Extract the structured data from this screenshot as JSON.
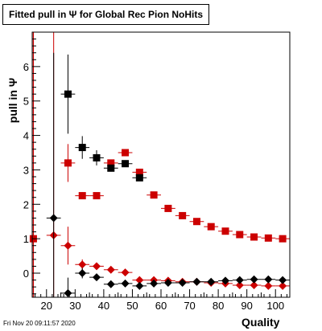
{
  "chart_data": {
    "type": "scatter",
    "title": "Fitted pull in Ψ  for Global Rec Pion NoHits",
    "xlabel": "Quality",
    "ylabel": "pull in Ψ",
    "xlim": [
      15,
      105
    ],
    "ylim": [
      -0.7,
      7.0
    ],
    "x_ticks": [
      20,
      30,
      40,
      50,
      60,
      70,
      80,
      90,
      100
    ],
    "y_ticks": [
      0,
      1,
      2,
      3,
      4,
      5,
      6
    ],
    "vertical_line": {
      "x": 15.4,
      "color": "#cc0000"
    },
    "grid": false,
    "legend": "none",
    "series": [
      {
        "marker": "square",
        "color": "#cc0000",
        "points": [
          {
            "x": 15.4,
            "y": 1.0,
            "yerr": 0.0
          },
          {
            "x": 27.5,
            "y": 3.2,
            "yerr": 0.55
          },
          {
            "x": 32.5,
            "y": 2.25,
            "yerr": 0.1
          },
          {
            "x": 37.5,
            "y": 2.25,
            "yerr": 0.05
          },
          {
            "x": 42.5,
            "y": 3.2,
            "yerr": 0.05
          },
          {
            "x": 47.5,
            "y": 3.5,
            "yerr": 0.05
          },
          {
            "x": 52.5,
            "y": 2.93,
            "yerr": 0.05
          },
          {
            "x": 57.5,
            "y": 2.27,
            "yerr": 0.05
          },
          {
            "x": 62.5,
            "y": 1.88,
            "yerr": 0.04
          },
          {
            "x": 67.5,
            "y": 1.67,
            "yerr": 0.03
          },
          {
            "x": 72.5,
            "y": 1.5,
            "yerr": 0.03
          },
          {
            "x": 77.5,
            "y": 1.35,
            "yerr": 0.03
          },
          {
            "x": 82.5,
            "y": 1.22,
            "yerr": 0.03
          },
          {
            "x": 87.5,
            "y": 1.12,
            "yerr": 0.03
          },
          {
            "x": 92.5,
            "y": 1.05,
            "yerr": 0.03
          },
          {
            "x": 97.5,
            "y": 1.02,
            "yerr": 0.03
          },
          {
            "x": 102.5,
            "y": 1.0,
            "yerr": 0.03
          }
        ]
      },
      {
        "marker": "square",
        "color": "#000000",
        "points": [
          {
            "x": 27.5,
            "y": 5.2,
            "yerr": 1.15
          },
          {
            "x": 32.5,
            "y": 3.65,
            "yerr": 0.33
          },
          {
            "x": 37.5,
            "y": 3.35,
            "yerr": 0.22
          },
          {
            "x": 42.5,
            "y": 3.05,
            "yerr": 0.1
          },
          {
            "x": 47.5,
            "y": 3.18,
            "yerr": 0.1
          },
          {
            "x": 52.5,
            "y": 2.77,
            "yerr": 0.05
          }
        ]
      },
      {
        "marker": "diamond",
        "color": "#cc0000",
        "points": [
          {
            "x": 22.5,
            "y": 1.1,
            "yerr": 6.0
          },
          {
            "x": 27.5,
            "y": 0.8,
            "yerr": 0.55
          },
          {
            "x": 32.5,
            "y": 0.25,
            "yerr": 0.15
          },
          {
            "x": 37.5,
            "y": 0.2,
            "yerr": 0.08
          },
          {
            "x": 42.5,
            "y": 0.1,
            "yerr": 0.05
          },
          {
            "x": 47.5,
            "y": 0.02,
            "yerr": 0.04
          },
          {
            "x": 52.5,
            "y": -0.2,
            "yerr": 0.04
          },
          {
            "x": 57.5,
            "y": -0.2,
            "yerr": 0.03
          },
          {
            "x": 62.5,
            "y": -0.22,
            "yerr": 0.03
          },
          {
            "x": 67.5,
            "y": -0.25,
            "yerr": 0.03
          },
          {
            "x": 72.5,
            "y": -0.25,
            "yerr": 0.03
          },
          {
            "x": 77.5,
            "y": -0.28,
            "yerr": 0.03
          },
          {
            "x": 82.5,
            "y": -0.3,
            "yerr": 0.03
          },
          {
            "x": 87.5,
            "y": -0.35,
            "yerr": 0.03
          },
          {
            "x": 92.5,
            "y": -0.35,
            "yerr": 0.03
          },
          {
            "x": 97.5,
            "y": -0.37,
            "yerr": 0.03
          },
          {
            "x": 102.5,
            "y": -0.37,
            "yerr": 0.03
          }
        ]
      },
      {
        "marker": "diamond",
        "color": "#000000",
        "points": [
          {
            "x": 22.5,
            "y": 1.6,
            "yerr": 4.8
          },
          {
            "x": 27.5,
            "y": -0.58,
            "yerr": 0.45
          },
          {
            "x": 32.5,
            "y": 0.0,
            "yerr": 0.15
          },
          {
            "x": 37.5,
            "y": -0.12,
            "yerr": 0.08
          },
          {
            "x": 42.5,
            "y": -0.32,
            "yerr": 0.05
          },
          {
            "x": 47.5,
            "y": -0.3,
            "yerr": 0.04
          },
          {
            "x": 52.5,
            "y": -0.37,
            "yerr": 0.04
          },
          {
            "x": 57.5,
            "y": -0.3,
            "yerr": 0.03
          },
          {
            "x": 62.5,
            "y": -0.28,
            "yerr": 0.03
          },
          {
            "x": 67.5,
            "y": -0.28,
            "yerr": 0.03
          },
          {
            "x": 72.5,
            "y": -0.25,
            "yerr": 0.03
          },
          {
            "x": 77.5,
            "y": -0.25,
            "yerr": 0.03
          },
          {
            "x": 82.5,
            "y": -0.22,
            "yerr": 0.03
          },
          {
            "x": 87.5,
            "y": -0.2,
            "yerr": 0.03
          },
          {
            "x": 92.5,
            "y": -0.18,
            "yerr": 0.03
          },
          {
            "x": 97.5,
            "y": -0.18,
            "yerr": 0.03
          },
          {
            "x": 102.5,
            "y": -0.2,
            "yerr": 0.03
          }
        ]
      }
    ]
  },
  "footer": {
    "timestamp": "Fri Nov 20 09:11:57 2020"
  }
}
